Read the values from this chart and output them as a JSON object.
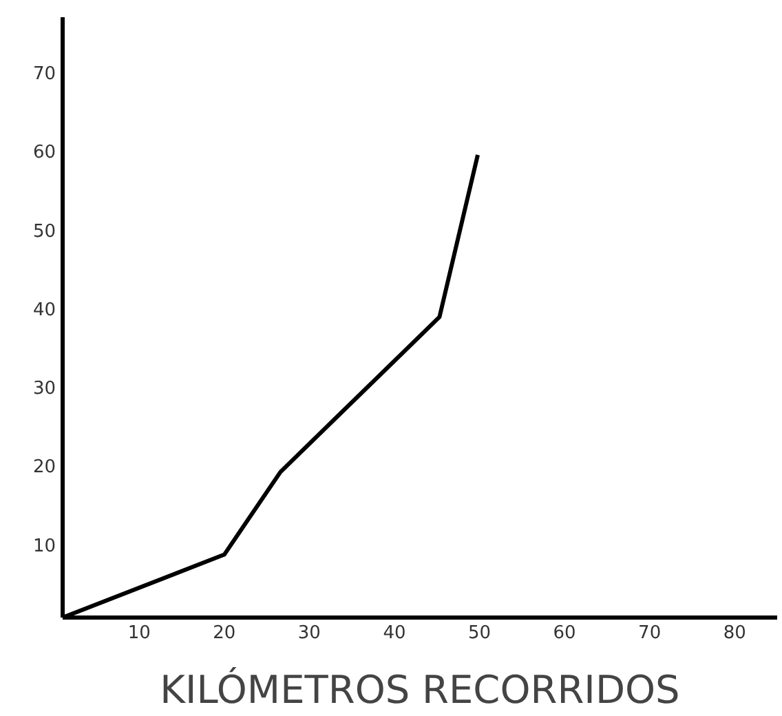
{
  "chart_data": {
    "type": "line",
    "xlabel": "KILÓMETROS RECORRIDOS",
    "x": [
      1,
      20,
      26.6,
      45.3,
      49.8
    ],
    "series": [
      {
        "color": "#000000",
        "values": [
          0.7,
          8.7,
          19.2,
          38.9,
          59.5
        ]
      }
    ],
    "xlim": [
      1,
      85
    ],
    "ylim": [
      0.7,
      77
    ],
    "xticks": [
      10,
      20,
      30,
      40,
      50,
      60,
      70,
      80
    ],
    "yticks": [
      10,
      20,
      30,
      40,
      50,
      60,
      70
    ],
    "grid": false,
    "marker": "none",
    "line_style": "solid"
  }
}
